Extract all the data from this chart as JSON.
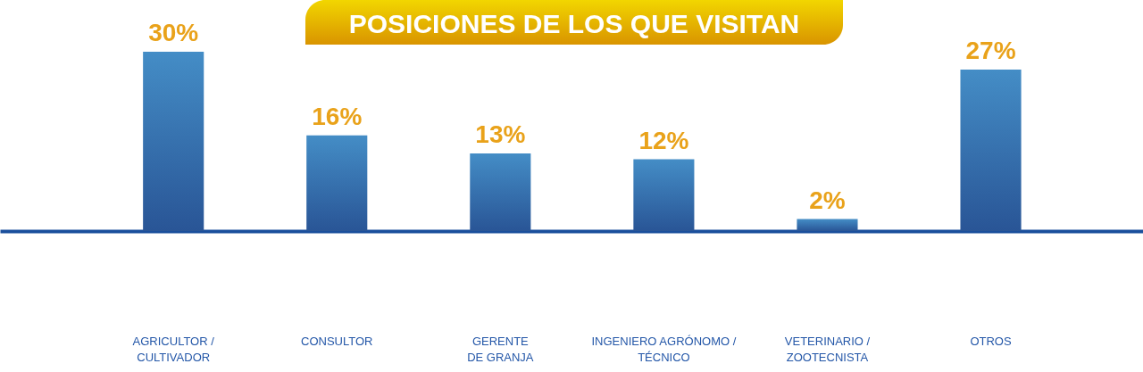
{
  "chart_data": {
    "type": "bar",
    "title": "POSICIONES DE LOS QUE VISITAN",
    "categories": [
      "AGRICULTOR /\nCULTIVADOR",
      "CONSULTOR",
      "GERENTE\nDE GRANJA",
      "INGENIERO AGRÓNOMO /\nTÉCNICO",
      "VETERINARIO /\nZOOTECNISTA",
      "OTROS"
    ],
    "values": [
      30,
      16,
      13,
      12,
      2,
      27
    ],
    "value_labels": [
      "30%",
      "16%",
      "13%",
      "12%",
      "2%",
      "27%"
    ],
    "color": "#3672ae",
    "tick_labels": "x"
  }
}
